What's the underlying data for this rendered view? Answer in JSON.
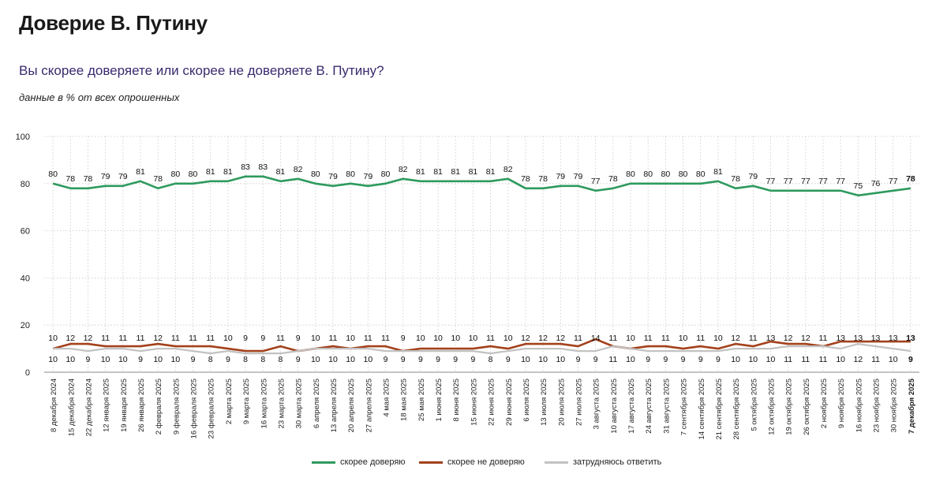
{
  "header": {
    "title": "Доверие В. Путину",
    "subtitle": "Вы скорее доверяете или скорее не доверяете В. Путину?",
    "note": "данные в % от всех опрошенных"
  },
  "chart_data": {
    "type": "line",
    "ylim": [
      0,
      100
    ],
    "yticks": [
      0,
      20,
      40,
      60,
      80,
      100
    ],
    "grid": true,
    "legend_position": "bottom",
    "categories": [
      "8 декабря 2024",
      "15 декабря 2024",
      "22 декабря 2024",
      "12 января 2025",
      "19 января 2025",
      "26 января 2025",
      "2 февраля 2025",
      "9 февраля 2025",
      "16 февраля 2025",
      "23 февраля 2025",
      "2 марта 2025",
      "9 марта 2025",
      "16 марта 2025",
      "23 марта 2025",
      "30 марта 2025",
      "6 апреля 2025",
      "13 апреля 2025",
      "20 апреля 2025",
      "27 апреля 2025",
      "4 мая 2025",
      "18 мая 2025",
      "25 мая 2025",
      "1 июня 2025",
      "8 июня 2025",
      "15 июня 2025",
      "22 июня 2025",
      "29 июня 2025",
      "6 июля 2025",
      "13 июля 2025",
      "20 июля 2025",
      "27 июля 2025",
      "3 августа 2025",
      "10 августа 2025",
      "17 августа 2025",
      "24 августа 2025",
      "31 августа 2025",
      "7 сентября 2025",
      "14 сентября 2025",
      "21 сентября 2025",
      "28 сентября 2025",
      "5 октября 2025",
      "12 октября 2025",
      "19 октября 2025",
      "26 октября 2025",
      "2 ноября 2025",
      "9 ноября 2025",
      "16 ноября 2025",
      "23 ноября 2025",
      "30 ноября 2025",
      "7 декабря 2025"
    ],
    "series": [
      {
        "name": "скорее доверяю",
        "color": "#2e9a5e",
        "values": [
          80,
          78,
          78,
          79,
          79,
          81,
          78,
          80,
          80,
          81,
          81,
          83,
          83,
          81,
          82,
          80,
          79,
          80,
          79,
          80,
          82,
          81,
          81,
          81,
          81,
          81,
          82,
          78,
          78,
          79,
          79,
          77,
          78,
          80,
          80,
          80,
          80,
          80,
          81,
          78,
          79,
          77,
          77,
          77,
          77,
          77,
          75,
          76,
          77,
          78
        ]
      },
      {
        "name": "скорее не доверяю",
        "color": "#a3411c",
        "values": [
          10,
          12,
          12,
          11,
          11,
          11,
          12,
          11,
          11,
          11,
          10,
          9,
          9,
          11,
          9,
          10,
          11,
          10,
          11,
          11,
          9,
          10,
          10,
          10,
          10,
          11,
          10,
          12,
          12,
          12,
          11,
          14,
          11,
          10,
          11,
          11,
          10,
          11,
          10,
          12,
          11,
          13,
          12,
          12,
          11,
          13,
          13,
          13,
          13,
          13
        ]
      },
      {
        "name": "затрудняюсь ответить",
        "color": "#c2c2c2",
        "values": [
          10,
          10,
          9,
          10,
          10,
          9,
          10,
          10,
          9,
          8,
          9,
          8,
          8,
          8,
          9,
          10,
          10,
          10,
          10,
          9,
          9,
          9,
          9,
          9,
          9,
          8,
          9,
          10,
          10,
          10,
          9,
          9,
          11,
          10,
          9,
          9,
          9,
          9,
          9,
          10,
          10,
          10,
          11,
          11,
          11,
          10,
          12,
          11,
          10,
          9
        ]
      }
    ]
  }
}
